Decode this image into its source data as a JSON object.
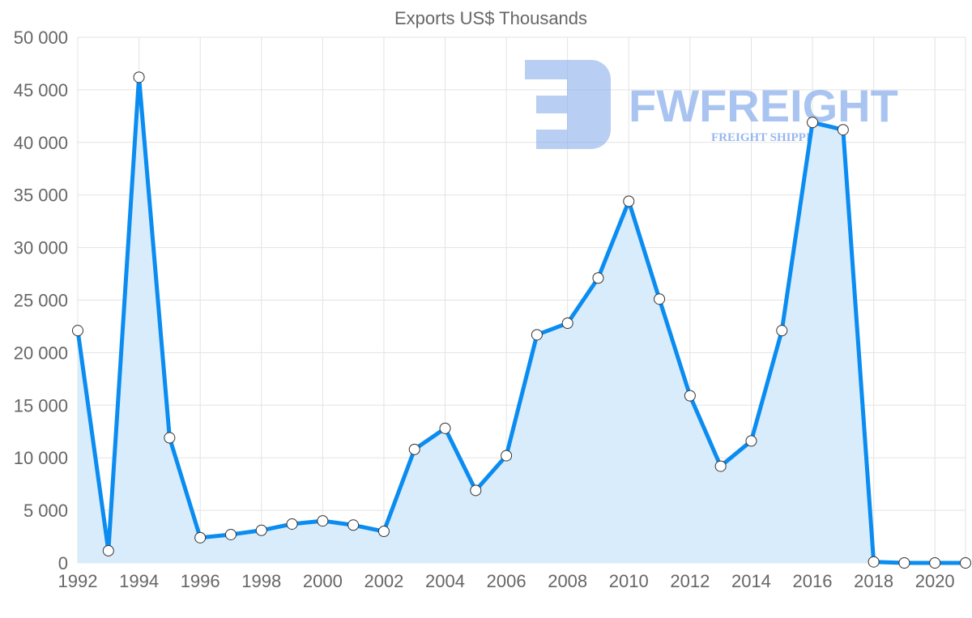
{
  "chart_data": {
    "type": "line",
    "title": "Exports US$ Thousands",
    "xlabel": "",
    "ylabel": "",
    "x": [
      1992,
      1993,
      1994,
      1995,
      1996,
      1997,
      1998,
      1999,
      2000,
      2001,
      2002,
      2003,
      2004,
      2005,
      2006,
      2007,
      2008,
      2009,
      2010,
      2011,
      2012,
      2013,
      2014,
      2015,
      2016,
      2017,
      2018,
      2019,
      2020,
      2021
    ],
    "series": [
      {
        "name": "Exports US$ Thousands",
        "values": [
          22100,
          1160,
          46200,
          11900,
          2400,
          2700,
          3100,
          3700,
          4000,
          3600,
          3000,
          10800,
          12800,
          6900,
          10200,
          21700,
          22800,
          27100,
          34400,
          25100,
          15900,
          9200,
          11600,
          22100,
          41900,
          41200,
          100,
          0,
          0,
          0
        ],
        "line_color": "#0a8cf0",
        "fill_color": "#d9ecfc",
        "fill": true
      }
    ],
    "ylim": [
      0,
      50000
    ],
    "yticks": [
      0,
      5000,
      10000,
      15000,
      20000,
      25000,
      30000,
      35000,
      40000,
      45000,
      50000
    ],
    "ytick_labels": [
      "0",
      "5 000",
      "10 000",
      "15 000",
      "20 000",
      "25 000",
      "30 000",
      "35 000",
      "40 000",
      "45 000",
      "50 000"
    ],
    "xticks": [
      1992,
      1994,
      1996,
      1998,
      2000,
      2002,
      2004,
      2006,
      2008,
      2010,
      2012,
      2014,
      2016,
      2018,
      2020
    ],
    "xlim": [
      1992,
      2021
    ],
    "grid": true,
    "legend": "none"
  },
  "watermark": {
    "brand": "FWFREIGHT",
    "tagline": "FREIGHT SHIPPING"
  }
}
